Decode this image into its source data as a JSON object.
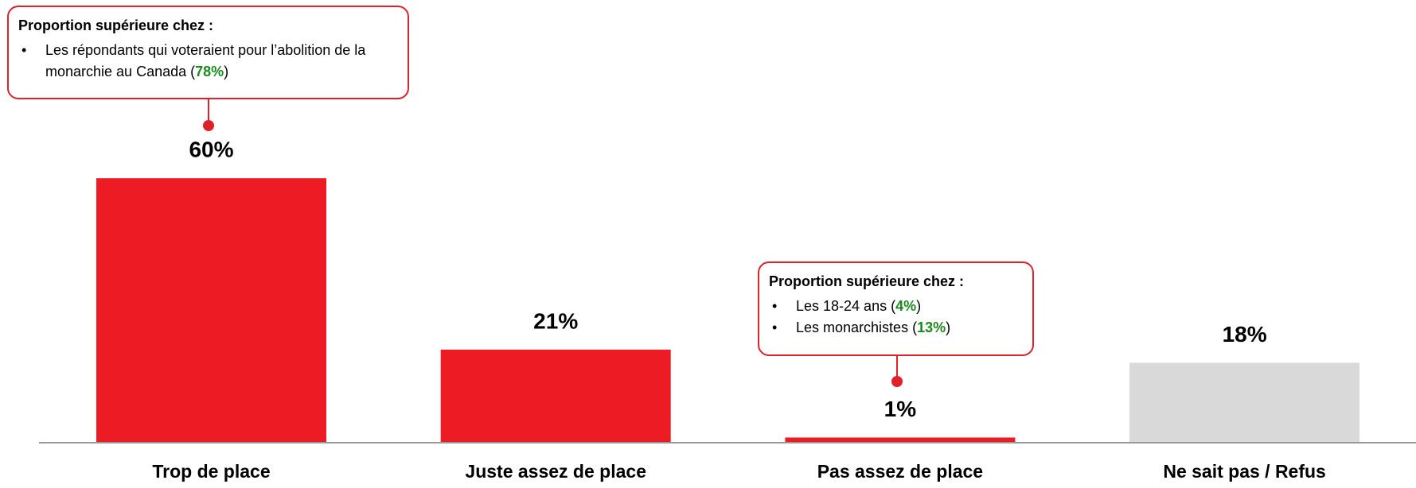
{
  "chart_data": {
    "type": "bar",
    "categories": [
      "Trop de place",
      "Juste assez de place",
      "Pas assez de place",
      "Ne sait pas / Refus"
    ],
    "values": [
      60,
      21,
      1,
      18
    ],
    "value_labels": [
      "60%",
      "21%",
      "1%",
      "18%"
    ],
    "colors": [
      "#ed1c24",
      "#ed1c24",
      "#ed1c24",
      "#d9d9d9"
    ],
    "annotations": [
      {
        "title": "Proportion supérieure chez :",
        "items": [
          {
            "text": "Les répondants qui voteraient pour l’abolition de la monarchie au Canada",
            "value_label": "78%"
          }
        ]
      },
      {
        "title": "Proportion supérieure chez :",
        "items": [
          {
            "text": "Les 18-24 ans",
            "value_label": "4%"
          },
          {
            "text": "Les monarchistes",
            "value_label": "13%"
          }
        ]
      }
    ]
  }
}
